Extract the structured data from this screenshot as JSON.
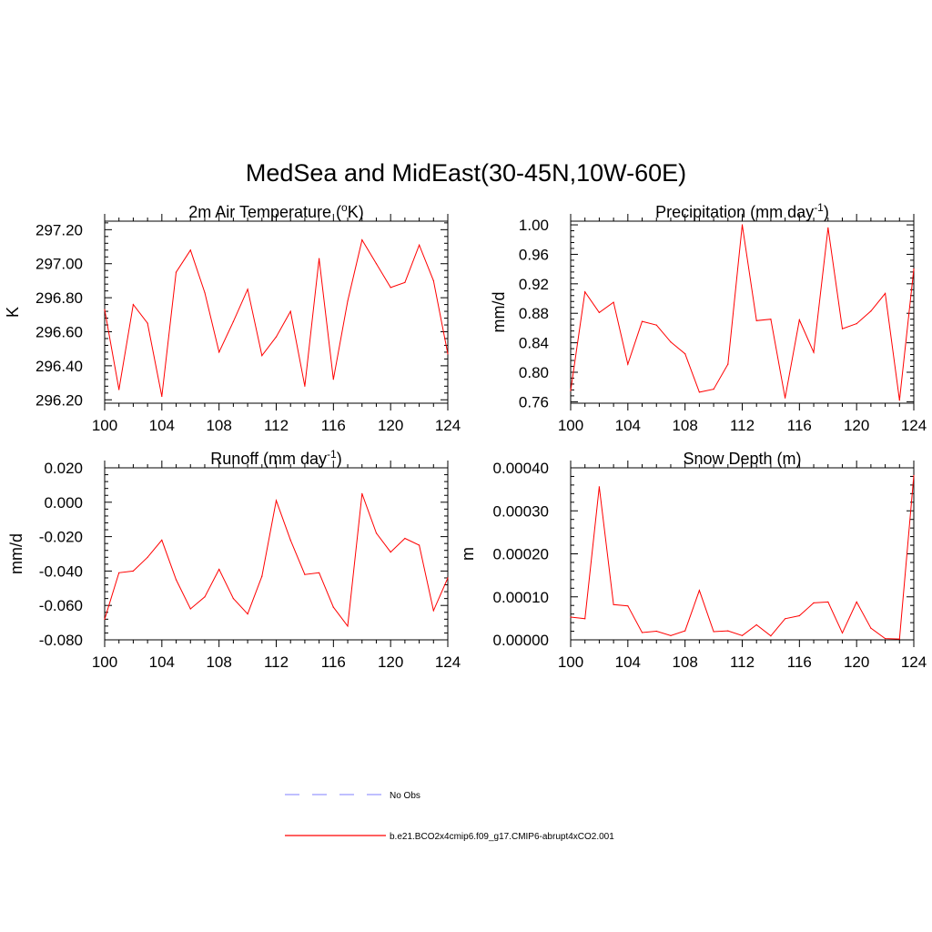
{
  "title": "MedSea and MidEast(30-45N,10W-60E)",
  "colors": {
    "series": "#ff0000",
    "noobs": "#9999ff",
    "axis": "#000000"
  },
  "legend": [
    {
      "label": "No Obs",
      "style": "dashed",
      "color": "#9999ff"
    },
    {
      "label": "b.e21.BCO2x4cmip6.f09_g17.CMIP6-abrupt4xCO2.001",
      "style": "solid",
      "color": "#ff0000"
    }
  ],
  "chart_data": [
    {
      "id": "temp",
      "type": "line",
      "title": "2m Air Temperature (oK)",
      "title_base": "2m Air Temperature (",
      "title_sup": "o",
      "title_tail": "K)",
      "ylabel": "K",
      "xlim": [
        100,
        124
      ],
      "ylim": [
        296.18,
        297.25
      ],
      "xticks": [
        100,
        104,
        108,
        112,
        116,
        120,
        124
      ],
      "yticks": [
        296.2,
        296.4,
        296.6,
        296.8,
        297.0,
        297.2
      ],
      "ytick_labels": [
        "296.20",
        "296.40",
        "296.60",
        "296.80",
        "297.00",
        "297.20"
      ],
      "series": [
        {
          "name": "b.e21.BCO2x4cmip6.f09_g17.CMIP6-abrupt4xCO2.001",
          "x": [
            100,
            101,
            102,
            103,
            104,
            105,
            106,
            107,
            108,
            109,
            110,
            111,
            112,
            113,
            114,
            115,
            116,
            117,
            118,
            119,
            120,
            121,
            122,
            123,
            124
          ],
          "values": [
            296.73,
            296.26,
            296.76,
            296.65,
            296.22,
            296.95,
            297.08,
            296.83,
            296.48,
            296.66,
            296.85,
            296.46,
            296.57,
            296.72,
            296.28,
            297.03,
            296.32,
            296.78,
            297.14,
            297.0,
            296.86,
            296.89,
            297.11,
            296.9,
            296.47
          ]
        }
      ]
    },
    {
      "id": "precip",
      "type": "line",
      "title": "Precipitation (mm day-1)",
      "title_base": "Precipitation (mm day",
      "title_sup": "-1",
      "title_tail": ")",
      "ylabel": "mm/d",
      "xlim": [
        100,
        124
      ],
      "ylim": [
        0.758,
        1.005
      ],
      "xticks": [
        100,
        104,
        108,
        112,
        116,
        120,
        124
      ],
      "yticks": [
        0.76,
        0.8,
        0.84,
        0.88,
        0.92,
        0.96,
        1.0
      ],
      "ytick_labels": [
        "0.76",
        "0.80",
        "0.84",
        "0.88",
        "0.92",
        "0.96",
        "1.00"
      ],
      "series": [
        {
          "name": "b.e21.BCO2x4cmip6.f09_g17.CMIP6-abrupt4xCO2.001",
          "x": [
            100,
            101,
            102,
            103,
            104,
            105,
            106,
            107,
            108,
            109,
            110,
            111,
            112,
            113,
            114,
            115,
            116,
            117,
            118,
            119,
            120,
            121,
            122,
            123,
            124
          ],
          "values": [
            0.775,
            0.909,
            0.881,
            0.895,
            0.811,
            0.869,
            0.864,
            0.841,
            0.825,
            0.773,
            0.777,
            0.811,
            1.0,
            0.87,
            0.872,
            0.765,
            0.871,
            0.827,
            0.996,
            0.859,
            0.866,
            0.883,
            0.907,
            0.762,
            0.94
          ]
        }
      ]
    },
    {
      "id": "runoff",
      "type": "line",
      "title": "Runoff (mm day-1)",
      "title_base": "Runoff (mm day",
      "title_sup": "-1",
      "title_tail": ")",
      "ylabel": "mm/d",
      "xlim": [
        100,
        124
      ],
      "ylim": [
        -0.08,
        0.02
      ],
      "xticks": [
        100,
        104,
        108,
        112,
        116,
        120,
        124
      ],
      "yticks": [
        -0.08,
        -0.06,
        -0.04,
        -0.02,
        0.0,
        0.02
      ],
      "ytick_labels": [
        "-0.080",
        "-0.060",
        "-0.040",
        "-0.020",
        "0.000",
        "0.020"
      ],
      "series": [
        {
          "name": "b.e21.BCO2x4cmip6.f09_g17.CMIP6-abrupt4xCO2.001",
          "x": [
            100,
            101,
            102,
            103,
            104,
            105,
            106,
            107,
            108,
            109,
            110,
            111,
            112,
            113,
            114,
            115,
            116,
            117,
            118,
            119,
            120,
            121,
            122,
            123,
            124
          ],
          "values": [
            -0.068,
            -0.041,
            -0.04,
            -0.032,
            -0.022,
            -0.045,
            -0.062,
            -0.055,
            -0.039,
            -0.056,
            -0.065,
            -0.043,
            0.001,
            -0.022,
            -0.042,
            -0.041,
            -0.061,
            -0.072,
            0.005,
            -0.018,
            -0.029,
            -0.021,
            -0.025,
            -0.063,
            -0.044
          ]
        }
      ]
    },
    {
      "id": "snow",
      "type": "line",
      "title": "Snow Depth (m)",
      "title_base": "Snow Depth (m)",
      "title_sup": "",
      "title_tail": "",
      "ylabel": "m",
      "xlim": [
        100,
        124
      ],
      "ylim": [
        0.0,
        0.0004
      ],
      "xticks": [
        100,
        104,
        108,
        112,
        116,
        120,
        124
      ],
      "yticks": [
        0.0,
        0.0001,
        0.0002,
        0.0003,
        0.0004
      ],
      "ytick_labels": [
        "0.00000",
        "0.00010",
        "0.00020",
        "0.00030",
        "0.00040"
      ],
      "series": [
        {
          "name": "b.e21.BCO2x4cmip6.f09_g17.CMIP6-abrupt4xCO2.001",
          "x": [
            100,
            101,
            102,
            103,
            104,
            105,
            106,
            107,
            108,
            109,
            110,
            111,
            112,
            113,
            114,
            115,
            116,
            117,
            118,
            119,
            120,
            121,
            122,
            123,
            124
          ],
          "values": [
            5.3e-05,
            4.9e-05,
            0.000356,
            8.2e-05,
            7.9e-05,
            1.7e-05,
            2e-05,
            1e-05,
            2.1e-05,
            0.000115,
            1.9e-05,
            2.1e-05,
            1e-05,
            3.5e-05,
            9e-06,
            4.9e-05,
            5.6e-05,
            8.6e-05,
            8.8e-05,
            1.6e-05,
            8.8e-05,
            2.7e-05,
            3e-06,
            2e-06,
            0.000382
          ]
        }
      ]
    }
  ]
}
